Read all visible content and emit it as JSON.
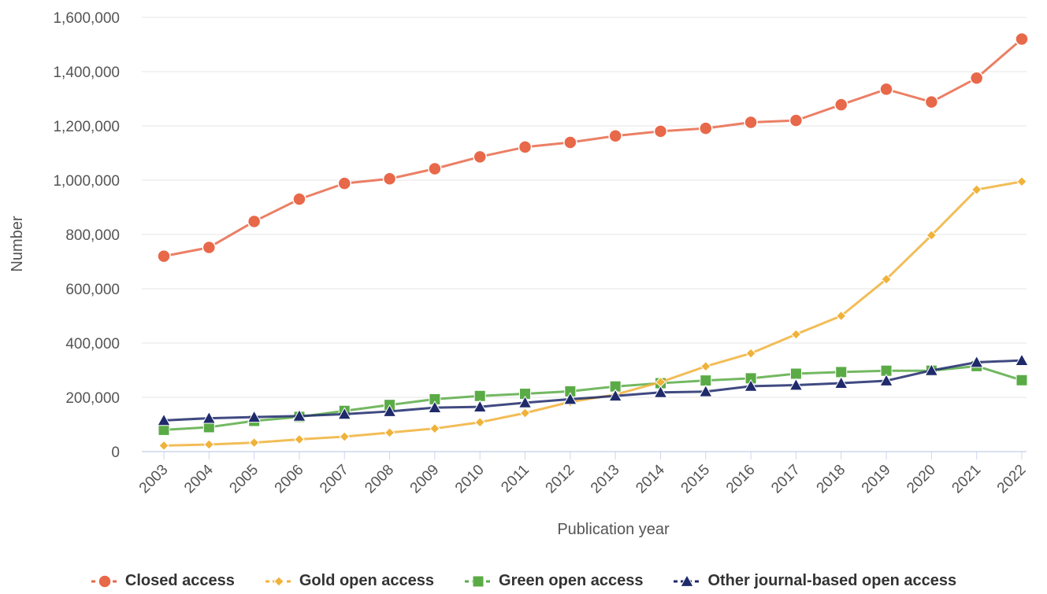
{
  "chart_data": {
    "type": "line",
    "title": "",
    "xlabel": "Publication year",
    "ylabel": "Number",
    "ylim": [
      0,
      1600000
    ],
    "yticks": [
      "0",
      "200,000",
      "400,000",
      "600,000",
      "800,000",
      "1,000,000",
      "1,200,000",
      "1,400,000",
      "1,600,000"
    ],
    "ytick_values": [
      0,
      200000,
      400000,
      600000,
      800000,
      1000000,
      1200000,
      1400000,
      1600000
    ],
    "grid": true,
    "legend_position": "bottom-center",
    "categories": [
      "2003",
      "2004",
      "2005",
      "2006",
      "2007",
      "2008",
      "2009",
      "2010",
      "2011",
      "2012",
      "2013",
      "2014",
      "2015",
      "2016",
      "2017",
      "2018",
      "2019",
      "2020",
      "2021",
      "2022"
    ],
    "series": [
      {
        "name": "Closed access",
        "color": "#e8684a",
        "marker": "circle",
        "values": [
          720000,
          752000,
          848000,
          930000,
          988000,
          1005000,
          1042000,
          1086000,
          1122000,
          1139000,
          1163000,
          1180000,
          1191000,
          1213000,
          1220000,
          1278000,
          1335000,
          1288000,
          1376000,
          1520000
        ]
      },
      {
        "name": "Gold open access",
        "color": "#f0b23a",
        "marker": "diamond",
        "values": [
          22000,
          26000,
          33000,
          45000,
          55000,
          70000,
          85000,
          108000,
          142000,
          183000,
          210000,
          256000,
          314000,
          362000,
          432000,
          500000,
          635000,
          797000,
          965000,
          995000
        ]
      },
      {
        "name": "Green open access",
        "color": "#5aab46",
        "marker": "square",
        "values": [
          80000,
          90000,
          113000,
          128000,
          150000,
          172000,
          193000,
          205000,
          213000,
          222000,
          240000,
          252000,
          262000,
          270000,
          287000,
          293000,
          298000,
          298000,
          315000,
          263000
        ]
      },
      {
        "name": "Other journal-based open access",
        "color": "#1f2a6b",
        "marker": "triangle",
        "values": [
          115000,
          123000,
          127000,
          131000,
          138000,
          148000,
          162000,
          165000,
          180000,
          193000,
          205000,
          218000,
          221000,
          241000,
          245000,
          252000,
          261000,
          299000,
          329000,
          336000
        ]
      }
    ]
  }
}
